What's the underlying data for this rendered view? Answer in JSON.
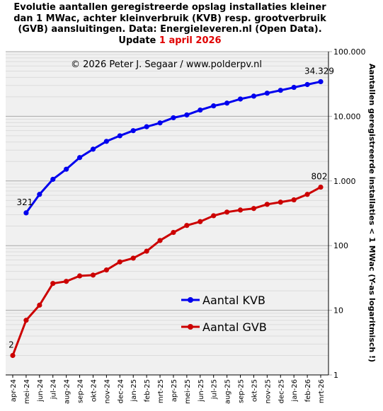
{
  "title": {
    "line1": "Evolutie aantallen geregistreerde opslag installaties kleiner",
    "line2": "dan 1 MWac, achter kleinverbruik (KVB) resp. grootverbruik",
    "line3": "(GVB) aansluitingen. Data: Energieleveren.nl (Open Data).",
    "update_prefix": "Update ",
    "update_date": "1 april 2026"
  },
  "copyright": "© 2026 Peter J. Segaar / www.polderpv.nl",
  "colors": {
    "kvb": "#0000ee",
    "gvb": "#cc0000",
    "plot_bg": "#f0f0f0",
    "grid": "#c8c8c8"
  },
  "chart_data": {
    "type": "line",
    "ylabel": "Aantallen geregistreerde installaties < 1 MWac (Y-as logaritmisch !)",
    "y_scale": "log",
    "ylim": [
      1,
      100000
    ],
    "y_ticks": [
      {
        "value": 1,
        "label": "1"
      },
      {
        "value": 10,
        "label": "10"
      },
      {
        "value": 100,
        "label": "100"
      },
      {
        "value": 1000,
        "label": "1.000"
      },
      {
        "value": 10000,
        "label": "10.000"
      },
      {
        "value": 100000,
        "label": "100.000"
      }
    ],
    "grid": true,
    "legend": "bottom-right",
    "categories": [
      "apr-24",
      "mei-24",
      "jun-24",
      "jul-24",
      "aug-24",
      "sep-24",
      "okt-24",
      "nov-24",
      "dec-24",
      "jan-25",
      "feb-25",
      "mrt-25",
      "apr-25",
      "mei-25",
      "jun-25",
      "jul-25",
      "aug-25",
      "sep-25",
      "okt-25",
      "nov-25",
      "dec-25",
      "jan-26",
      "feb-26",
      "mrt-26"
    ],
    "series": [
      {
        "name": "Aantal KVB",
        "color": "#0000ee",
        "values": [
          null,
          321,
          620,
          1060,
          1520,
          2300,
          3100,
          4100,
          5000,
          6000,
          6900,
          7900,
          9500,
          10500,
          12500,
          14500,
          16000,
          18500,
          20500,
          22800,
          25200,
          28000,
          31000,
          34329
        ],
        "first_label": "321",
        "last_label": "34.329"
      },
      {
        "name": "Aantal GVB",
        "color": "#cc0000",
        "values": [
          2,
          7,
          12,
          26,
          28,
          34,
          35,
          42,
          56,
          64,
          82,
          120,
          160,
          205,
          235,
          290,
          330,
          355,
          375,
          435,
          470,
          510,
          620,
          802
        ],
        "first_label": "2",
        "last_label": "802"
      }
    ]
  }
}
